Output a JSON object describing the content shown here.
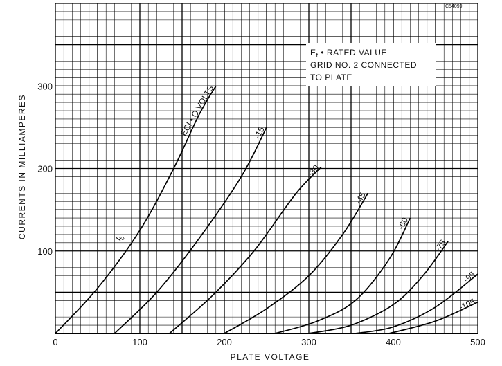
{
  "chart_data": {
    "type": "line",
    "title": "",
    "xlabel": "PLATE VOLTAGE",
    "ylabel": "CURRENTS IN MILLIAMPERES",
    "xlim": [
      0,
      500
    ],
    "ylim": [
      0,
      400
    ],
    "x_ticks": [
      "0",
      "100",
      "200",
      "300",
      "400",
      "500"
    ],
    "y_ticks": [
      "100",
      "200",
      "300"
    ],
    "grid": true,
    "code": "C54099",
    "annotation": {
      "line1": "E",
      "line1_sub": "f",
      "line1_rest": " • RATED VALUE",
      "line2": "GRID NO. 2 CONNECTED",
      "line3": "TO PLATE"
    },
    "series_note": "I",
    "series_note_sub": "b",
    "series": [
      {
        "name": "ECI • O VOLTS",
        "points": [
          [
            0,
            0
          ],
          [
            50,
            55
          ],
          [
            100,
            125
          ],
          [
            140,
            200
          ],
          [
            170,
            265
          ],
          [
            190,
            300
          ]
        ]
      },
      {
        "name": "-15",
        "points": [
          [
            70,
            0
          ],
          [
            120,
            50
          ],
          [
            170,
            115
          ],
          [
            220,
            190
          ],
          [
            250,
            250
          ]
        ]
      },
      {
        "name": "-30",
        "points": [
          [
            135,
            0
          ],
          [
            185,
            45
          ],
          [
            235,
            100
          ],
          [
            285,
            170
          ],
          [
            315,
            202
          ]
        ]
      },
      {
        "name": "-45",
        "points": [
          [
            200,
            0
          ],
          [
            250,
            30
          ],
          [
            300,
            70
          ],
          [
            340,
            120
          ],
          [
            370,
            170
          ]
        ]
      },
      {
        "name": "-60",
        "points": [
          [
            260,
            0
          ],
          [
            310,
            15
          ],
          [
            355,
            40
          ],
          [
            395,
            90
          ],
          [
            420,
            140
          ]
        ]
      },
      {
        "name": "-75",
        "points": [
          [
            300,
            0
          ],
          [
            350,
            10
          ],
          [
            400,
            35
          ],
          [
            435,
            70
          ],
          [
            465,
            112
          ]
        ]
      },
      {
        "name": "-95",
        "points": [
          [
            355,
            0
          ],
          [
            400,
            8
          ],
          [
            450,
            32
          ],
          [
            500,
            72
          ]
        ]
      },
      {
        "name": "-105",
        "points": [
          [
            395,
            0
          ],
          [
            450,
            15
          ],
          [
            500,
            38
          ]
        ]
      }
    ]
  }
}
